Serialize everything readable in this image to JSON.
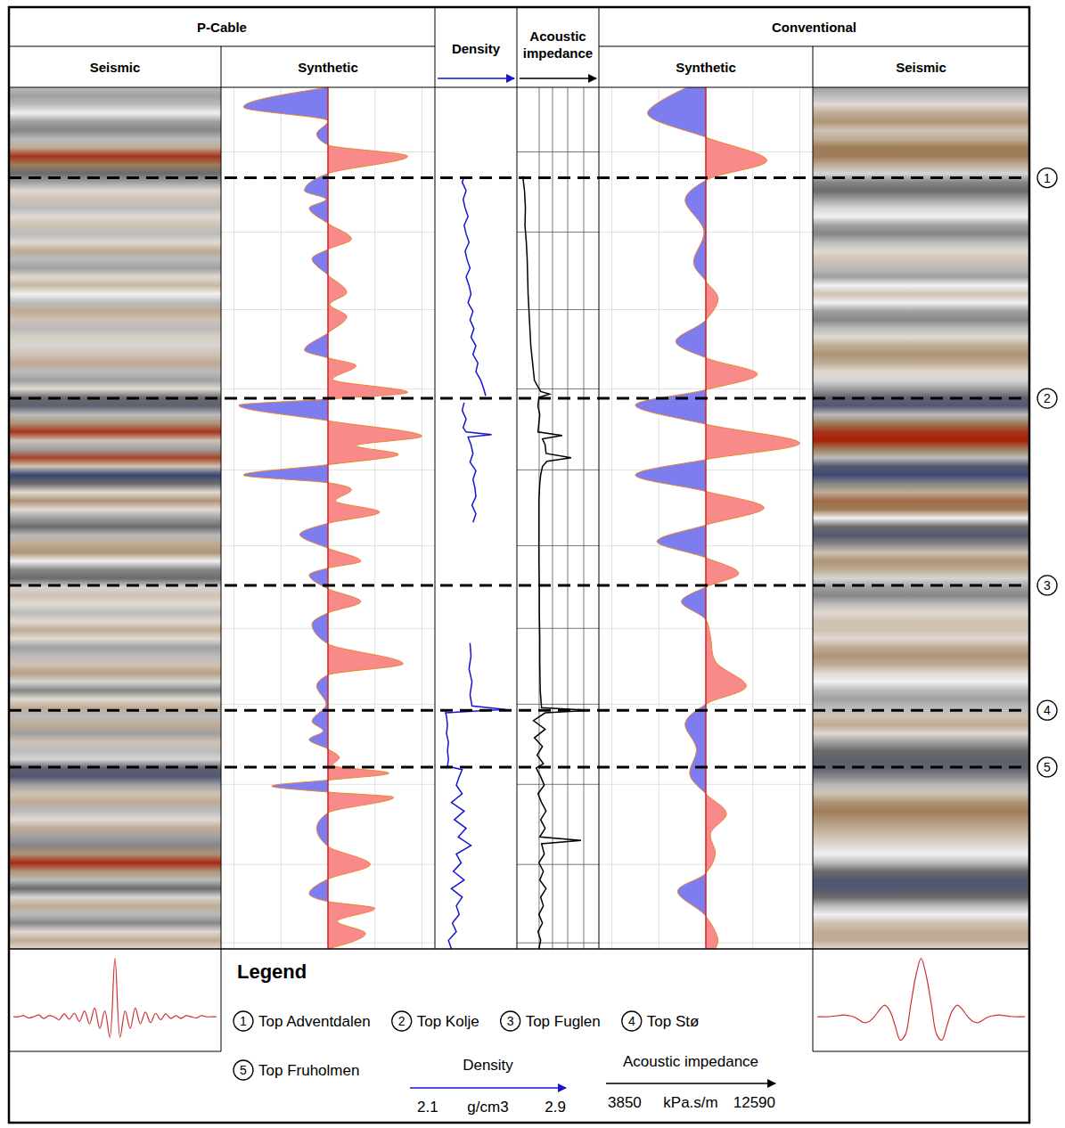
{
  "header": {
    "p_cable": "P-Cable",
    "conventional": "Conventional",
    "seismic": "Seismic",
    "synthetic": "Synthetic",
    "density": "Density",
    "acoustic_impedance": "Acoustic impedance"
  },
  "chart_data": {
    "type": "well_tie",
    "ylim": [
      0,
      100
    ],
    "yticks": [
      7.5,
      16.8,
      25.8,
      35,
      44.4,
      53.2,
      62.8,
      71.6,
      80.9,
      90.2,
      99.3
    ],
    "tick_labels": false,
    "grid": true,
    "seismic_colors": {
      "domain": [
        -1,
        -0.5,
        0,
        0.5,
        1
      ],
      "colors": [
        "#2f3c78",
        "#6b6b6b",
        "#f0f0f0",
        "#9e7d58",
        "#a8200a"
      ]
    },
    "p_cable": {
      "seismic": {
        "t": [
          0,
          1,
          2,
          3,
          4,
          5,
          6,
          7,
          8,
          9,
          10,
          11,
          12,
          13,
          14,
          15,
          16,
          17,
          18,
          19,
          20,
          21,
          22,
          23,
          24,
          25,
          26,
          27,
          28,
          29,
          30,
          31,
          32,
          33,
          34,
          35,
          36,
          37,
          38,
          39,
          40,
          41,
          42,
          43,
          44,
          45,
          46,
          47,
          48,
          49,
          50,
          51,
          52,
          53,
          54,
          55,
          56,
          57,
          58,
          59,
          60,
          61,
          62,
          63,
          64,
          65,
          66,
          67,
          68,
          69,
          70,
          71,
          72,
          73,
          74,
          75,
          76,
          77,
          78,
          79,
          80,
          81,
          82,
          83,
          84,
          85,
          86,
          87,
          88,
          89,
          90,
          91,
          92,
          93,
          94,
          95,
          96,
          97,
          98,
          99,
          100
        ],
        "amplitude": [
          -0.2,
          -0.3,
          -0.2,
          0,
          -0.3,
          -0.4,
          -0.2,
          0.3,
          0.9,
          0.5,
          -0.5,
          -0.3,
          0.1,
          0.2,
          -0.2,
          0.1,
          0.2,
          -0.2,
          0.1,
          0.3,
          -0.2,
          -0.3,
          0.1,
          0.25,
          0,
          -0.2,
          0.3,
          0.2,
          -0.2,
          0.15,
          -0.1,
          0.2,
          0.3,
          -0.2,
          -0.3,
          0.1,
          -0.5,
          -0.6,
          -0.2,
          0.4,
          0.9,
          0.2,
          -0.3,
          0.8,
          0.2,
          -0.9,
          -0.5,
          0.1,
          0.4,
          0.1,
          -0.3,
          -0.5,
          -0.2,
          0.3,
          0.4,
          0,
          -0.4,
          -0.5,
          -0.1,
          0.2,
          0.1,
          -0.2,
          0.1,
          0.3,
          0.1,
          -0.3,
          -0.2,
          0.2,
          0.35,
          -0.1,
          -0.4,
          0.1,
          0.3,
          -0.2,
          0.3,
          -0.3,
          0.2,
          -0.2,
          -0.1,
          -0.6,
          -0.7,
          -0.3,
          0.2,
          0.3,
          -0.2,
          0.1,
          0.3,
          -0.3,
          -0.4,
          0.4,
          0.95,
          0.4,
          -0.2,
          -0.5,
          -0.1,
          0.3,
          -0.2,
          -0.4,
          0.1,
          0.3,
          0.1
        ]
      },
      "synthetic": {
        "xlim": [
          -1.1,
          1.1
        ],
        "xticks": [
          -1,
          -0.5,
          0.5,
          1
        ],
        "t": [
          0,
          2.3,
          3.9,
          5.4,
          6.7,
          8,
          10,
          12,
          13,
          14,
          15.8,
          17.6,
          18.8,
          19.9,
          21.8,
          23.8,
          25.2,
          26.6,
          28.5,
          30.5,
          31.4,
          32.3,
          33.9,
          35.4,
          36.2,
          36.9,
          38.7,
          40.5,
          41.6,
          42.6,
          43.8,
          45,
          45.9,
          46.7,
          48,
          49.3,
          50.6,
          51.9,
          53.5,
          55,
          55.8,
          56.6,
          58.2,
          59.7,
          61,
          62.3,
          64.6,
          66.9,
          68.2,
          69.5,
          71.6,
          73.6,
          74.7,
          75.7,
          76.8,
          77.8,
          78.7,
          79.6,
          80.4,
          81.1,
          81.8,
          82.4,
          84.2,
          86,
          88.1,
          90.2,
          91.9,
          93.6,
          94.5,
          95.3,
          96.8,
          98.2,
          100
        ],
        "amplitude": [
          0,
          -0.9,
          0,
          -0.12,
          0,
          0.85,
          0,
          -0.25,
          -0.02,
          -0.2,
          0,
          0.25,
          0,
          -0.17,
          0,
          0.2,
          0.02,
          0.2,
          0,
          -0.25,
          0,
          0.3,
          0.05,
          0.85,
          0,
          -0.95,
          0,
          1.0,
          0.3,
          0.75,
          0,
          -0.9,
          0,
          0.25,
          0.08,
          0.55,
          0,
          -0.3,
          0,
          0.35,
          0,
          -0.2,
          0,
          0.35,
          0,
          -0.17,
          0,
          0.8,
          0,
          -0.12,
          -0.02,
          -0.17,
          -0.05,
          -0.2,
          0,
          0.12,
          0.05,
          0.65,
          0,
          -0.6,
          0,
          0.7,
          0,
          -0.12,
          0,
          0.45,
          0,
          -0.2,
          0,
          0.5,
          0.1,
          0.4,
          0
        ]
      },
      "wavelet": {
        "ylim": [
          -0.5,
          1.1
        ],
        "values": [
          0,
          0,
          0.02,
          -0.02,
          0,
          0.03,
          -0.03,
          0.02,
          0,
          -0.05,
          0.05,
          -0.04,
          0.06,
          -0.08,
          0.1,
          -0.12,
          0.15,
          -0.2,
          0.1,
          -0.35,
          1.0,
          -0.35,
          0.1,
          -0.2,
          0.15,
          -0.12,
          0.08,
          -0.1,
          0.06,
          -0.05,
          0.05,
          -0.03,
          0.02,
          -0.03,
          0.02,
          0,
          -0.02,
          0.02,
          0,
          0,
          0
        ]
      }
    },
    "conventional": {
      "seismic": {
        "t": [
          0,
          1,
          2,
          3,
          4,
          5,
          6,
          7,
          8,
          9,
          10,
          11,
          12,
          13,
          14,
          15,
          16,
          17,
          18,
          19,
          20,
          21,
          22,
          23,
          24,
          25,
          26,
          27,
          28,
          29,
          30,
          31,
          32,
          33,
          34,
          35,
          36,
          37,
          38,
          39,
          40,
          41,
          42,
          43,
          44,
          45,
          46,
          47,
          48,
          49,
          50,
          51,
          52,
          53,
          54,
          55,
          56,
          57,
          58,
          59,
          60,
          61,
          62,
          63,
          64,
          65,
          66,
          67,
          68,
          69,
          70,
          71,
          72,
          73,
          74,
          75,
          76,
          77,
          78,
          79,
          80,
          81,
          82,
          83,
          84,
          85,
          86,
          87,
          88,
          89,
          90,
          91,
          92,
          93,
          94,
          95,
          96,
          97,
          98,
          99,
          100
        ],
        "amplitude": [
          -0.3,
          -0.2,
          0.1,
          0.3,
          0.4,
          0.2,
          0.3,
          0.5,
          0.5,
          0.3,
          -0.1,
          -0.4,
          -0.5,
          -0.3,
          -0.1,
          0,
          -0.3,
          -0.4,
          -0.2,
          0.1,
          0.2,
          -0.2,
          -0.3,
          0,
          0.2,
          0,
          -0.3,
          -0.4,
          -0.2,
          0.1,
          0.3,
          0.4,
          0.3,
          0.1,
          -0.1,
          -0.3,
          -0.6,
          -0.7,
          -0.2,
          0.5,
          0.9,
          1.0,
          0.5,
          -0.2,
          -0.7,
          -0.85,
          -0.4,
          0.3,
          0.6,
          0.5,
          0,
          -0.5,
          -0.7,
          -0.4,
          0.2,
          0.4,
          0.3,
          -0.1,
          -0.3,
          -0.4,
          -0.2,
          0.1,
          0.2,
          0.2,
          0.1,
          0.3,
          0.4,
          0.3,
          0.1,
          0,
          -0.2,
          -0.3,
          -0.2,
          0.2,
          0.3,
          0.1,
          -0.3,
          -0.5,
          -0.6,
          -0.6,
          -0.4,
          -0.2,
          0.2,
          0.4,
          0.5,
          0.4,
          0.3,
          0.2,
          0.1,
          0,
          -0.2,
          -0.5,
          -0.7,
          -0.7,
          -0.5,
          -0.2,
          0,
          0.2,
          0.3,
          0.3,
          0.1
        ]
      },
      "synthetic": {
        "xlim": [
          -1.1,
          1.1
        ],
        "xticks": [
          -1,
          -0.5,
          0.5,
          1
        ],
        "t": [
          0,
          3,
          5.8,
          8.5,
          10.8,
          13,
          16.7,
          20.4,
          22.5,
          24.5,
          27,
          29.5,
          31.4,
          33.3,
          35.1,
          36.9,
          39.1,
          41.3,
          43.2,
          45,
          46.9,
          48.8,
          50.8,
          52.7,
          54.6,
          56.4,
          58,
          59.7,
          61.8,
          63.8,
          66.6,
          69.5,
          71.6,
          73.8,
          76.8,
          79.8,
          82,
          84.3,
          86.6,
          89,
          91.2,
          93.3,
          96.2,
          99,
          100
        ],
        "amplitude": [
          -0.2,
          -0.62,
          0,
          0.65,
          0,
          -0.22,
          -0.02,
          -0.13,
          0,
          0.13,
          0,
          -0.32,
          0,
          0.55,
          0,
          -0.75,
          0,
          1.0,
          0,
          -0.75,
          0,
          0.62,
          0,
          -0.52,
          0,
          0.35,
          0,
          -0.26,
          0,
          0.05,
          0.1,
          0.43,
          0,
          -0.22,
          -0.1,
          -0.17,
          0,
          0.22,
          0.05,
          0.1,
          0,
          -0.3,
          0,
          0.13,
          0.1
        ]
      },
      "wavelet": {
        "ylim": [
          -0.5,
          1.1
        ],
        "values": [
          0,
          0,
          0,
          0.01,
          0.02,
          0.03,
          0.02,
          0,
          -0.05,
          -0.1,
          -0.08,
          0,
          0.12,
          0.2,
          0.1,
          -0.15,
          -0.4,
          -0.3,
          0.2,
          0.7,
          1.0,
          0.7,
          0.2,
          -0.3,
          -0.4,
          -0.15,
          0.1,
          0.2,
          0.12,
          0,
          -0.08,
          -0.1,
          -0.05,
          0,
          0.02,
          0.03,
          0.02,
          0.01,
          0,
          0,
          0
        ]
      }
    },
    "density": {
      "xlim": [
        2.1,
        2.9
      ],
      "unit": "g/cm3",
      "color": "#1515d0",
      "t": [
        10.4,
        11,
        12,
        13,
        14,
        15,
        16,
        17,
        18,
        19,
        20,
        21,
        22,
        23,
        24,
        25,
        26,
        27,
        28,
        29,
        30,
        31,
        32,
        33,
        34,
        35,
        35.8,
        36.2,
        36.6,
        37.5,
        38.5,
        39.5,
        40,
        40.3,
        40.6,
        41.5,
        42.5,
        43.5,
        44.5,
        45.5,
        46.5,
        47.5,
        48.5,
        49.5,
        50.5,
        51,
        64.5,
        66,
        67.5,
        69,
        70.5,
        71.8,
        72.2,
        72.6,
        73,
        74,
        75,
        76,
        77,
        78,
        78.8,
        79.2,
        80,
        81,
        82,
        83,
        84,
        85,
        86,
        87,
        88,
        89,
        90,
        91,
        92,
        93,
        94,
        95,
        96,
        97,
        98,
        99,
        100
      ],
      "values": [
        2.38,
        2.36,
        2.4,
        2.37,
        2.39,
        2.42,
        2.38,
        2.4,
        2.43,
        2.39,
        2.41,
        2.44,
        2.4,
        2.43,
        2.45,
        2.42,
        2.47,
        2.44,
        2.48,
        2.45,
        2.5,
        2.47,
        2.52,
        2.5,
        2.55,
        2.58,
        2.6,
        null,
        2.38,
        2.36,
        2.4,
        2.37,
        2.4,
        2.66,
        2.42,
        2.45,
        2.47,
        2.44,
        2.5,
        2.47,
        2.49,
        2.5,
        2.46,
        2.5,
        2.47,
        null,
        2.44,
        2.45,
        2.43,
        2.46,
        2.44,
        2.46,
        2.8,
        2.19,
        2.2,
        2.21,
        2.2,
        2.22,
        2.21,
        2.22,
        2.21,
        2.36,
        2.33,
        2.3,
        2.36,
        2.25,
        2.38,
        2.28,
        2.4,
        2.32,
        2.45,
        2.3,
        2.35,
        2.27,
        2.38,
        2.25,
        2.36,
        2.3,
        2.33,
        2.26,
        2.3,
        2.22,
        2.25
      ]
    },
    "acoustic_impedance": {
      "xlim": [
        3850,
        12590
      ],
      "xticks": [
        6130,
        7620,
        9310,
        11100
      ],
      "unit": "kPa.s/m",
      "color": "#000000",
      "t": [
        10.3,
        12,
        14,
        16,
        18,
        20,
        22,
        24,
        26,
        28,
        30,
        32,
        34,
        35.3,
        35.6,
        36,
        37,
        38,
        39,
        40,
        40.4,
        40.8,
        41.5,
        42.5,
        43,
        43.4,
        44,
        45,
        46,
        48,
        50,
        52,
        55,
        58,
        61,
        64,
        67,
        70,
        72,
        72.3,
        72.6,
        73.5,
        74.5,
        75.5,
        76.5,
        77.5,
        78.5,
        79,
        80,
        81,
        82,
        83,
        84,
        85,
        86,
        87,
        87.4,
        87.8,
        89,
        90,
        91,
        92,
        93,
        94,
        95,
        96,
        97,
        98,
        99,
        100
      ],
      "values": [
        4300,
        4500,
        4600,
        4550,
        4700,
        4800,
        4850,
        4900,
        5000,
        5100,
        5200,
        5400,
        5600,
        6300,
        7300,
        6100,
        6000,
        6200,
        6100,
        6000,
        8700,
        6500,
        6800,
        6900,
        9700,
        7000,
        6500,
        6300,
        6200,
        6100,
        6100,
        6100,
        6100,
        6150,
        6150,
        6200,
        6200,
        6250,
        6400,
        11800,
        6800,
        5500,
        6800,
        5600,
        6500,
        5900,
        6600,
        5800,
        6300,
        6700,
        6000,
        6400,
        6900,
        6300,
        6800,
        6200,
        10800,
        6400,
        6700,
        6100,
        6600,
        6200,
        6900,
        6300,
        6600,
        6100,
        6500,
        6000,
        6300,
        6100
      ]
    },
    "horizons": [
      {
        "number": 1,
        "name": "Top Adventdalen",
        "t": 10.5
      },
      {
        "number": 2,
        "name": "Top Kolje",
        "t": 36.1
      },
      {
        "number": 3,
        "name": "Top Fuglen",
        "t": 57.8
      },
      {
        "number": 4,
        "name": "Top Stø",
        "t": 72.3
      },
      {
        "number": 5,
        "name": "Top Fruholmen",
        "t": 78.9
      }
    ]
  },
  "legend": {
    "title": "Legend"
  }
}
